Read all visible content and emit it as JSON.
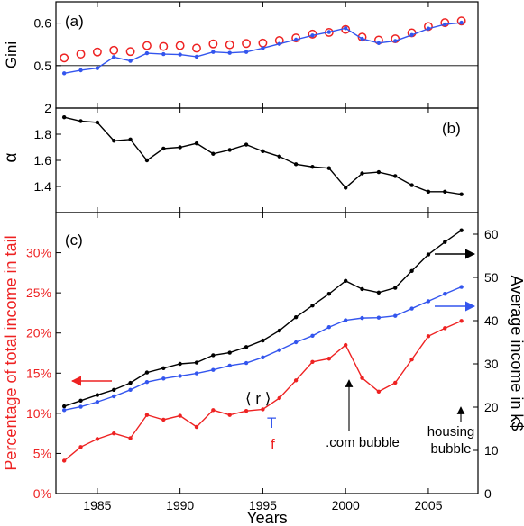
{
  "chart_data": [
    {
      "panel": "a",
      "type": "line+scatter",
      "panel_label": "(a)",
      "ylabel": "Gini",
      "ylim": [
        0.4,
        0.65
      ],
      "yticks": [
        0.5,
        0.6
      ],
      "ytick_labels": [
        "0.5",
        "0.6"
      ],
      "reference_line": 0.5,
      "x": [
        1983,
        1984,
        1985,
        1986,
        1987,
        1988,
        1989,
        1990,
        1991,
        1992,
        1993,
        1994,
        1995,
        1996,
        1997,
        1998,
        1999,
        2000,
        2001,
        2002,
        2003,
        2004,
        2005,
        2006,
        2007
      ],
      "series": [
        {
          "marker": "open-circle",
          "color": "#ee2222",
          "values": [
            0.518,
            0.527,
            0.532,
            0.536,
            0.533,
            0.547,
            0.545,
            0.547,
            0.541,
            0.551,
            0.549,
            0.552,
            0.553,
            0.559,
            0.565,
            0.574,
            0.578,
            0.585,
            0.567,
            0.56,
            0.563,
            0.577,
            0.592,
            0.601,
            0.605
          ]
        },
        {
          "marker": "dot-line",
          "color": "#3355ee",
          "values": [
            0.482,
            0.489,
            0.494,
            0.52,
            0.511,
            0.529,
            0.527,
            0.526,
            0.521,
            0.532,
            0.53,
            0.532,
            0.541,
            0.551,
            0.561,
            0.571,
            0.579,
            0.588,
            0.563,
            0.553,
            0.558,
            0.572,
            0.587,
            0.597,
            0.601
          ]
        }
      ]
    },
    {
      "panel": "b",
      "type": "line",
      "panel_label": "(b)",
      "ylabel": "α",
      "ylim": [
        1.2,
        2.0
      ],
      "yticks": [
        1.4,
        1.6,
        1.8,
        2.0
      ],
      "ytick_labels": [
        "1.4",
        "1.6",
        "1.8",
        "2"
      ],
      "x": [
        1983,
        1984,
        1985,
        1986,
        1987,
        1988,
        1989,
        1990,
        1991,
        1992,
        1993,
        1994,
        1995,
        1996,
        1997,
        1998,
        1999,
        2000,
        2001,
        2002,
        2003,
        2004,
        2005,
        2006,
        2007
      ],
      "series": [
        {
          "color": "#000000",
          "values": [
            1.93,
            1.9,
            1.89,
            1.75,
            1.76,
            1.6,
            1.69,
            1.7,
            1.73,
            1.65,
            1.68,
            1.72,
            1.67,
            1.63,
            1.57,
            1.55,
            1.54,
            1.39,
            1.5,
            1.51,
            1.48,
            1.41,
            1.36,
            1.36,
            1.34
          ]
        }
      ]
    },
    {
      "panel": "c",
      "type": "line",
      "panel_label": "(c)",
      "xlabel": "Years",
      "xlim": [
        1982.5,
        2008
      ],
      "xticks": [
        1985,
        1990,
        1995,
        2000,
        2005
      ],
      "xtick_labels": [
        "1985",
        "1990",
        "1995",
        "2000",
        "2005"
      ],
      "ylabel_left": "Percentage of total income in tail",
      "ylabel_right": "Average income in k$",
      "ylim_left": [
        0,
        35
      ],
      "yticks_left": [
        0,
        5,
        10,
        15,
        20,
        25,
        30
      ],
      "ytick_labels_left": [
        "0%",
        "5%",
        "10%",
        "15%",
        "20%",
        "25%",
        "30%"
      ],
      "ylim_right": [
        0,
        65
      ],
      "yticks_right": [
        0,
        10,
        20,
        30,
        40,
        50,
        60
      ],
      "ytick_labels_right": [
        "0",
        "10",
        "20",
        "30",
        "40",
        "50",
        "60"
      ],
      "x": [
        1983,
        1984,
        1985,
        1986,
        1987,
        1988,
        1989,
        1990,
        1991,
        1992,
        1993,
        1994,
        1995,
        1996,
        1997,
        1998,
        1999,
        2000,
        2001,
        2002,
        2003,
        2004,
        2005,
        2006,
        2007
      ],
      "series": [
        {
          "name": "f",
          "axis": "left",
          "color": "#ee2222",
          "values": [
            4.1,
            5.8,
            6.8,
            7.5,
            6.9,
            9.8,
            9.2,
            9.7,
            8.3,
            10.4,
            9.8,
            10.3,
            10.5,
            11.9,
            14.1,
            16.4,
            16.8,
            18.5,
            14.4,
            12.7,
            13.8,
            16.7,
            19.6,
            20.6,
            21.5
          ]
        },
        {
          "name": "T",
          "axis": "right",
          "color": "#3355ee",
          "values": [
            19.3,
            20.1,
            21.2,
            22.5,
            24.0,
            25.8,
            26.6,
            27.2,
            27.8,
            28.6,
            29.6,
            30.2,
            31.5,
            33.2,
            35.0,
            36.5,
            38.5,
            40.1,
            40.6,
            40.7,
            41.1,
            42.8,
            44.5,
            46.2,
            47.8
          ]
        },
        {
          "name": "⟨ r ⟩",
          "axis": "right",
          "color": "#000000",
          "values": [
            20.2,
            21.5,
            22.8,
            24.0,
            25.6,
            28.0,
            29.0,
            30.0,
            30.3,
            32.0,
            32.6,
            33.9,
            35.4,
            37.7,
            40.8,
            43.5,
            46.2,
            49.2,
            47.3,
            46.5,
            47.6,
            51.5,
            55.3,
            58.2,
            60.9
          ]
        }
      ],
      "annotations": [
        {
          "text": ".com bubble",
          "x": 2000,
          "color": "#000000"
        },
        {
          "text": "housing",
          "x": 2007,
          "color": "#000000"
        },
        {
          "text": "bubble",
          "x": 2007,
          "color": "#000000"
        }
      ]
    }
  ]
}
